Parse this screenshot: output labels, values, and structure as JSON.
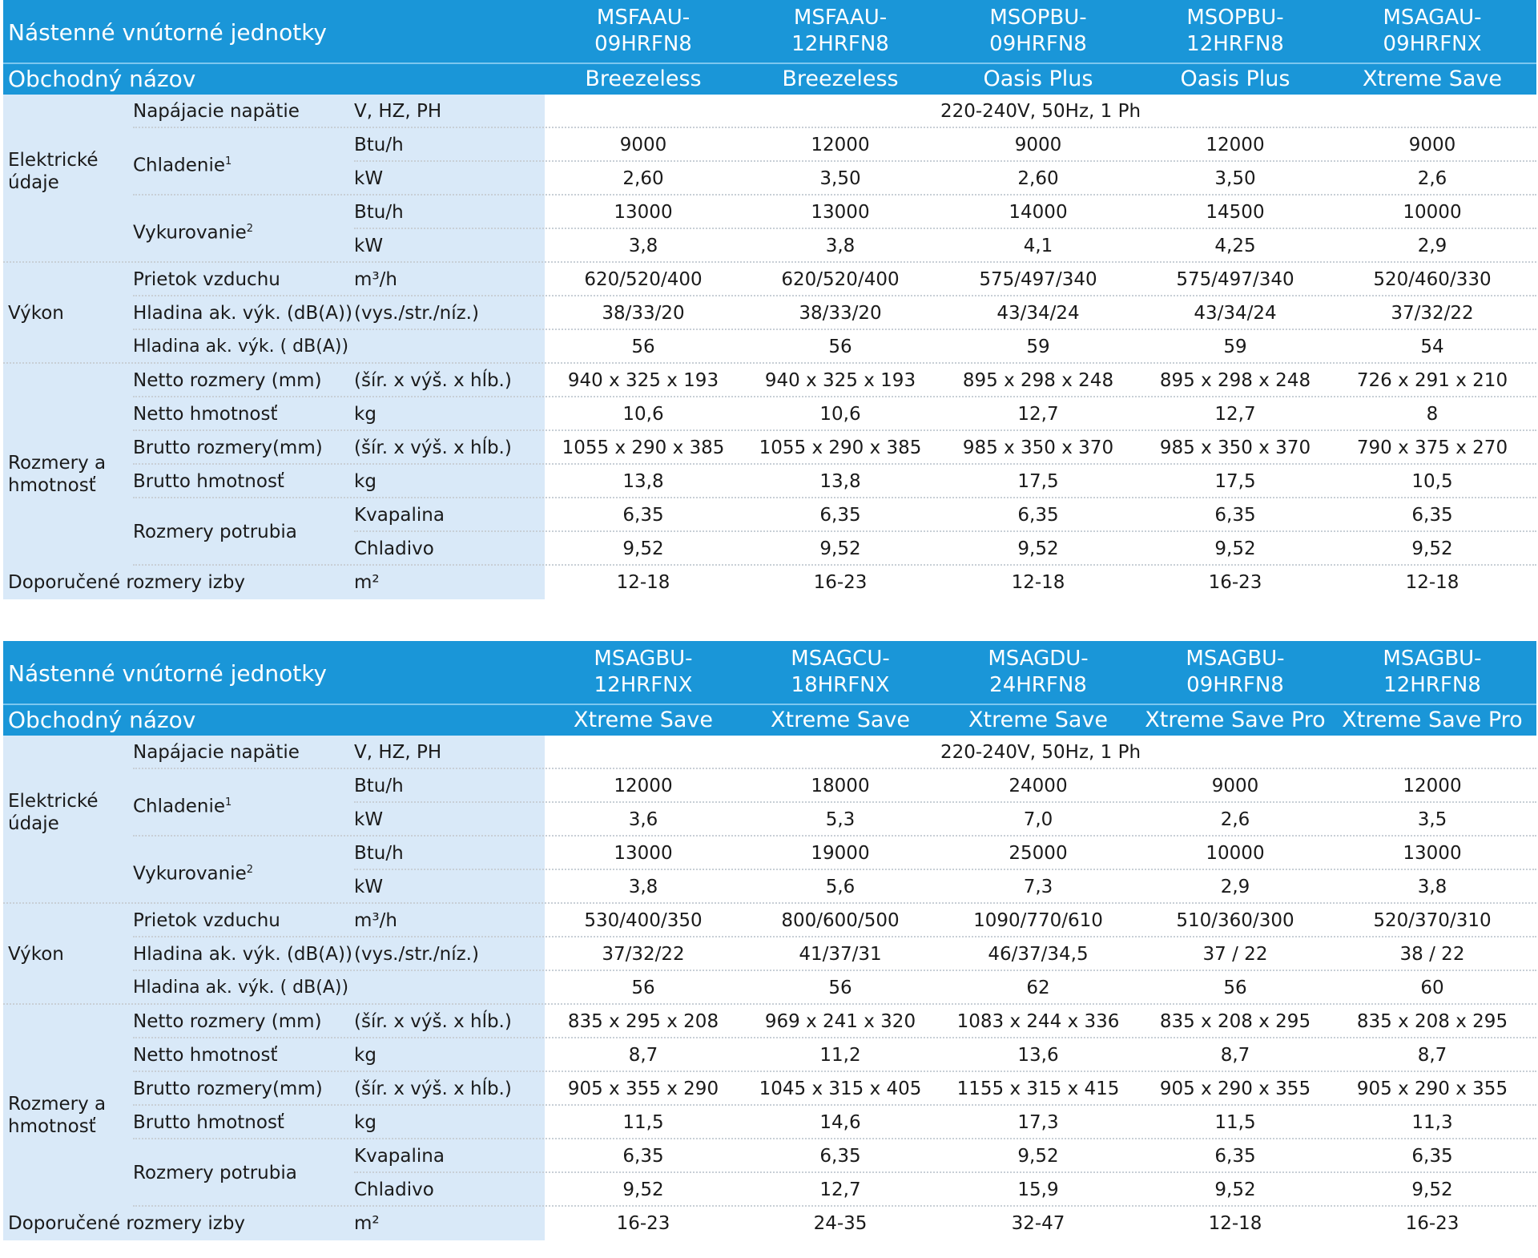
{
  "tables": [
    {
      "title": "Nástenné vnútorné jednotky",
      "models": [
        [
          "MSFAAU-",
          "09HRFN8"
        ],
        [
          "MSFAAU-",
          "12HRFN8"
        ],
        [
          "MSOPBU-",
          "09HRFN8"
        ],
        [
          "MSOPBU-",
          "12HRFN8"
        ],
        [
          "MSAGAU-",
          "09HRFNX"
        ]
      ],
      "trade_label": "Obchodný názov",
      "trade_names": [
        "Breezeless",
        "Breezeless",
        "Oasis Plus",
        "Oasis Plus",
        "Xtreme Save"
      ],
      "groups": {
        "electric": [
          "Elektrické",
          "údaje"
        ],
        "performance": "Výkon",
        "dims": [
          "Rozmery a",
          "hmotnosť"
        ]
      },
      "params": {
        "voltage": "Napájacie napätie",
        "voltage_unit": "V, HZ, PH",
        "voltage_value": "220-240V, 50Hz, 1 Ph",
        "cooling": "Chladenie",
        "cooling_sup": "1",
        "heating": "Vykurovanie",
        "heating_sup": "2",
        "btu": "Btu/h",
        "kw": "kW",
        "airflow": "Prietok vzduchu",
        "airflow_unit": "m³/h",
        "noise": "Hladina ak. výk. (dB(A))",
        "noise_unit": "(vys./str./níz.)",
        "noise2": "Hladina ak. výk. ( dB(A))",
        "net_dim": "Netto rozmery (mm)",
        "dim_unit": "(šír. x výš. x hĺb.)",
        "net_weight": "Netto hmotnosť",
        "kg": "kg",
        "gross_dim": "Brutto rozmery(mm)",
        "gross_weight": "Brutto hmotnosť",
        "pipe": "Rozmery potrubia",
        "liquid": "Kvapalina",
        "refrigerant": "Chladivo",
        "room": "Doporučené rozmery izby",
        "room_unit": "m²"
      },
      "values": {
        "cool_btu": [
          "9000",
          "12000",
          "9000",
          "12000",
          "9000"
        ],
        "cool_kw": [
          "2,60",
          "3,50",
          "2,60",
          "3,50",
          "2,6"
        ],
        "heat_btu": [
          "13000",
          "13000",
          "14000",
          "14500",
          "10000"
        ],
        "heat_kw": [
          "3,8",
          "3,8",
          "4,1",
          "4,25",
          "2,9"
        ],
        "airflow": [
          "620/520/400",
          "620/520/400",
          "575/497/340",
          "575/497/340",
          "520/460/330"
        ],
        "noise": [
          "38/33/20",
          "38/33/20",
          "43/34/24",
          "43/34/24",
          "37/32/22"
        ],
        "noise2": [
          "56",
          "56",
          "59",
          "59",
          "54"
        ],
        "net_dim": [
          "940 x 325 x 193",
          "940 x 325 x 193",
          "895 x 298 x 248",
          "895 x 298 x 248",
          "726 x 291 x 210"
        ],
        "net_weight": [
          "10,6",
          "10,6",
          "12,7",
          "12,7",
          "8"
        ],
        "gross_dim": [
          "1055 x 290 x 385",
          "1055 x 290 x 385",
          "985 x 350 x 370",
          "985 x 350 x 370",
          "790 x 375 x 270"
        ],
        "gross_weight": [
          "13,8",
          "13,8",
          "17,5",
          "17,5",
          "10,5"
        ],
        "liquid": [
          "6,35",
          "6,35",
          "6,35",
          "6,35",
          "6,35"
        ],
        "refrigerant": [
          "9,52",
          "9,52",
          "9,52",
          "9,52",
          "9,52"
        ],
        "room": [
          "12-18",
          "16-23",
          "12-18",
          "16-23",
          "12-18"
        ]
      }
    },
    {
      "title": "Nástenné vnútorné jednotky",
      "models": [
        [
          "MSAGBU-",
          "12HRFNX"
        ],
        [
          "MSAGCU-",
          "18HRFNX"
        ],
        [
          "MSAGDU-",
          "24HRFN8"
        ],
        [
          "MSAGBU-",
          "09HRFN8"
        ],
        [
          "MSAGBU-",
          "12HRFN8"
        ]
      ],
      "trade_label": "Obchodný názov",
      "trade_names": [
        "Xtreme Save",
        "Xtreme Save",
        "Xtreme Save",
        "Xtreme Save Pro",
        "Xtreme Save Pro"
      ],
      "groups": {
        "electric": [
          "Elektrické",
          "údaje"
        ],
        "performance": "Výkon",
        "dims": [
          "Rozmery a",
          "hmotnosť"
        ]
      },
      "params": {
        "voltage": "Napájacie napätie",
        "voltage_unit": "V, HZ, PH",
        "voltage_value": "220-240V, 50Hz, 1 Ph",
        "cooling": "Chladenie",
        "cooling_sup": "1",
        "heating": "Vykurovanie",
        "heating_sup": "2",
        "btu": "Btu/h",
        "kw": "kW",
        "airflow": "Prietok vzduchu",
        "airflow_unit": "m³/h",
        "noise": "Hladina ak. výk. (dB(A))",
        "noise_unit": "(vys./str./níz.)",
        "noise2": "Hladina ak. výk. ( dB(A))",
        "net_dim": "Netto rozmery (mm)",
        "dim_unit": "(šír. x výš. x hĺb.)",
        "net_weight": "Netto hmotnosť",
        "kg": "kg",
        "gross_dim": "Brutto rozmery(mm)",
        "gross_weight": "Brutto hmotnosť",
        "pipe": "Rozmery potrubia",
        "liquid": "Kvapalina",
        "refrigerant": "Chladivo",
        "room": "Doporučené rozmery izby",
        "room_unit": "m²"
      },
      "values": {
        "cool_btu": [
          "12000",
          "18000",
          "24000",
          "9000",
          "12000"
        ],
        "cool_kw": [
          "3,6",
          "5,3",
          "7,0",
          "2,6",
          "3,5"
        ],
        "heat_btu": [
          "13000",
          "19000",
          "25000",
          "10000",
          "13000"
        ],
        "heat_kw": [
          "3,8",
          "5,6",
          "7,3",
          "2,9",
          "3,8"
        ],
        "airflow": [
          "530/400/350",
          "800/600/500",
          "1090/770/610",
          "510/360/300",
          "520/370/310"
        ],
        "noise": [
          "37/32/22",
          "41/37/31",
          "46/37/34,5",
          "37 / 22",
          "38 / 22"
        ],
        "noise2": [
          "56",
          "56",
          "62",
          "56",
          "60"
        ],
        "net_dim": [
          "835 x 295 x 208",
          "969 x 241 x 320",
          "1083 x 244 x 336",
          "835 x 208 x 295",
          "835 x 208 x 295"
        ],
        "net_weight": [
          "8,7",
          "11,2",
          "13,6",
          "8,7",
          "8,7"
        ],
        "gross_dim": [
          "905 x 355 x 290",
          "1045 x 315 x 405",
          "1155 x 315 x 415",
          "905 x 290 x 355",
          "905 x 290 x 355"
        ],
        "gross_weight": [
          "11,5",
          "14,6",
          "17,3",
          "11,5",
          "11,3"
        ],
        "liquid": [
          "6,35",
          "6,35",
          "9,52",
          "6,35",
          "6,35"
        ],
        "refrigerant": [
          "9,52",
          "12,7",
          "15,9",
          "9,52",
          "9,52"
        ],
        "room": [
          "16-23",
          "24-35",
          "32-47",
          "12-18",
          "16-23"
        ]
      }
    }
  ]
}
